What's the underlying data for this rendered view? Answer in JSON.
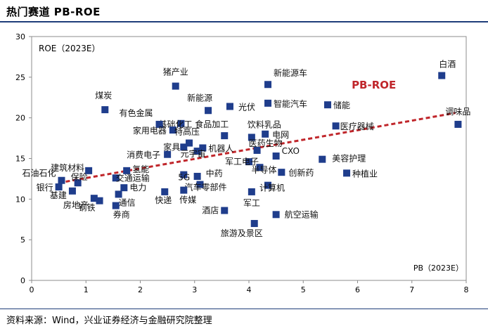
{
  "title": "热门赛道 PB-ROE",
  "source": "资料来源：Wind，兴业证券经济与金融研究院整理",
  "chart_data": {
    "type": "scatter",
    "title": "",
    "xlabel": "PB（2023E）",
    "ylabel": "ROE（2023E）",
    "xlim": [
      0,
      8
    ],
    "ylim": [
      0,
      30
    ],
    "xticks": [
      0,
      1,
      2,
      3,
      4,
      5,
      6,
      7,
      8
    ],
    "yticks": [
      0,
      5,
      10,
      15,
      20,
      25,
      30
    ],
    "grid": false,
    "marker_color": "#1f3d8c",
    "trendline": {
      "label": "PB-ROE",
      "color": "#c0262b",
      "style": "dashed",
      "start": [
        0.5,
        12.0
      ],
      "end": [
        7.8,
        20.6
      ]
    },
    "points": [
      {
        "name": "白酒",
        "x": 7.55,
        "y": 25.2
      },
      {
        "name": "调味品",
        "x": 7.85,
        "y": 19.2
      },
      {
        "name": "新能源车",
        "x": 4.35,
        "y": 24.1
      },
      {
        "name": "猪产业",
        "x": 2.65,
        "y": 23.9
      },
      {
        "name": "储能",
        "x": 5.45,
        "y": 21.6
      },
      {
        "name": "智能汽车",
        "x": 4.35,
        "y": 21.8
      },
      {
        "name": "光伏",
        "x": 3.65,
        "y": 21.4
      },
      {
        "name": "新能源",
        "x": 3.25,
        "y": 20.9
      },
      {
        "name": "煤炭",
        "x": 1.35,
        "y": 21.0
      },
      {
        "name": "基础化工",
        "x": 2.75,
        "y": 19.3
      },
      {
        "name": "有色金属",
        "x": 2.35,
        "y": 19.2
      },
      {
        "name": "家用电器",
        "x": 2.6,
        "y": 18.5
      },
      {
        "name": "食品加工",
        "x": 3.55,
        "y": 17.8
      },
      {
        "name": "饮料乳品",
        "x": 4.05,
        "y": 17.6
      },
      {
        "name": "电网",
        "x": 4.3,
        "y": 18.0
      },
      {
        "name": "医疗器械",
        "x": 5.6,
        "y": 19.0
      },
      {
        "name": "特高压",
        "x": 2.9,
        "y": 16.9
      },
      {
        "name": "家具",
        "x": 2.8,
        "y": 16.4
      },
      {
        "name": "机器人",
        "x": 3.15,
        "y": 16.3
      },
      {
        "name": "医药生物",
        "x": 4.15,
        "y": 16.0
      },
      {
        "name": "消费电子",
        "x": 2.5,
        "y": 15.5
      },
      {
        "name": "元宇宙",
        "x": 3.05,
        "y": 15.9
      },
      {
        "name": "CXO",
        "x": 4.5,
        "y": 15.3
      },
      {
        "name": "美容护理",
        "x": 5.35,
        "y": 14.9
      },
      {
        "name": "军工电子",
        "x": 4.0,
        "y": 14.6
      },
      {
        "name": "半导体",
        "x": 4.2,
        "y": 13.9
      },
      {
        "name": "创新药",
        "x": 4.6,
        "y": 13.3
      },
      {
        "name": "种植业",
        "x": 5.8,
        "y": 13.2
      },
      {
        "name": "中药",
        "x": 3.05,
        "y": 12.8
      },
      {
        "name": "5G",
        "x": 2.8,
        "y": 13.0
      },
      {
        "name": "建筑材料",
        "x": 1.05,
        "y": 13.5
      },
      {
        "name": "氢能",
        "x": 1.75,
        "y": 13.5
      },
      {
        "name": "交通运输",
        "x": 1.55,
        "y": 12.6
      },
      {
        "name": "石油石化",
        "x": 0.55,
        "y": 12.3
      },
      {
        "name": "保险",
        "x": 0.85,
        "y": 12.0
      },
      {
        "name": "汽车零部件",
        "x": 3.1,
        "y": 11.8
      },
      {
        "name": "计算机",
        "x": 4.35,
        "y": 11.7
      },
      {
        "name": "银行",
        "x": 0.5,
        "y": 11.5
      },
      {
        "name": "基建",
        "x": 0.75,
        "y": 11.0
      },
      {
        "name": "电力",
        "x": 1.7,
        "y": 11.4
      },
      {
        "name": "快递",
        "x": 2.45,
        "y": 10.9
      },
      {
        "name": "传媒",
        "x": 2.8,
        "y": 11.1
      },
      {
        "name": "军工",
        "x": 4.05,
        "y": 10.9
      },
      {
        "name": "通信",
        "x": 1.6,
        "y": 10.6
      },
      {
        "name": "房地产",
        "x": 1.15,
        "y": 10.1
      },
      {
        "name": "钢铁",
        "x": 1.25,
        "y": 9.8
      },
      {
        "name": "券商",
        "x": 1.55,
        "y": 9.2
      },
      {
        "name": "酒店",
        "x": 3.55,
        "y": 8.6
      },
      {
        "name": "航空运输",
        "x": 4.5,
        "y": 8.1
      },
      {
        "name": "旅游及景区",
        "x": 4.1,
        "y": 7.0
      }
    ]
  }
}
